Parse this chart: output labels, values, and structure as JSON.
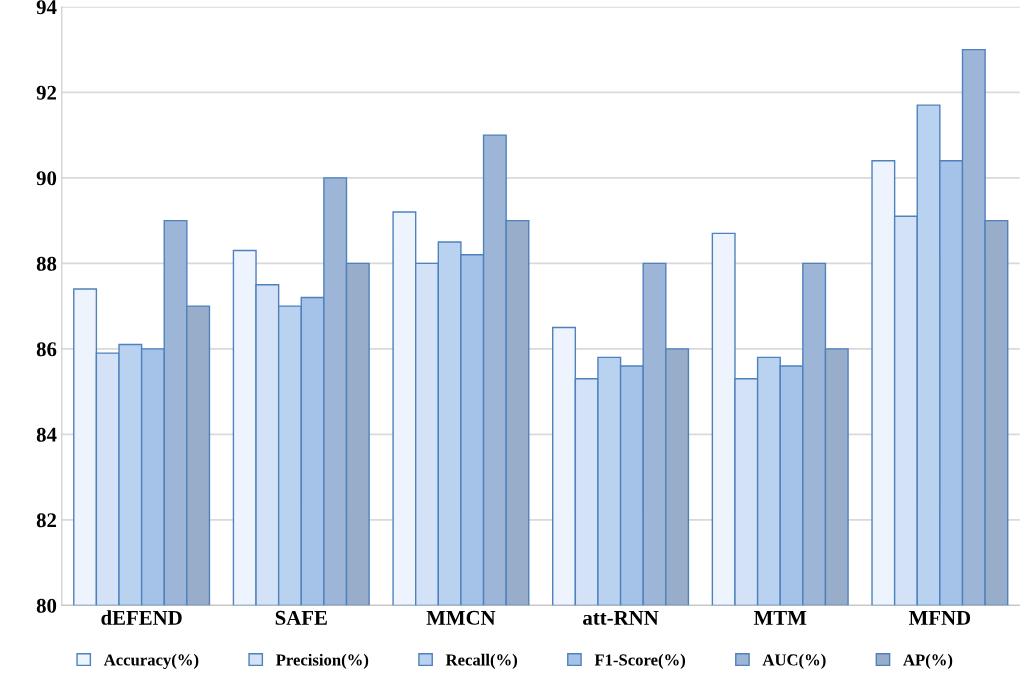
{
  "chart_data": {
    "type": "bar",
    "categories": [
      "dEFEND",
      "SAFE",
      "MMCN",
      "att-RNN",
      "MTM",
      "MFND"
    ],
    "series": [
      {
        "name": "Accuracy(%)",
        "color": "#eef4fd",
        "values": [
          87.4,
          88.3,
          89.2,
          86.5,
          88.7,
          90.4
        ]
      },
      {
        "name": "Precision(%)",
        "color": "#d3e2f6",
        "values": [
          85.9,
          87.5,
          88.0,
          85.3,
          85.3,
          89.1
        ]
      },
      {
        "name": "Recall(%)",
        "color": "#b9d2f0",
        "values": [
          86.1,
          87.0,
          88.5,
          85.8,
          85.8,
          91.7
        ]
      },
      {
        "name": "F1-Score(%)",
        "color": "#a5c3e8",
        "values": [
          86.0,
          87.2,
          88.2,
          85.6,
          85.6,
          90.4
        ]
      },
      {
        "name": "AUC(%)",
        "color": "#9db5d6",
        "values": [
          89.0,
          90.0,
          91.0,
          88.0,
          88.0,
          93.0
        ]
      },
      {
        "name": "AP(%)",
        "color": "#98adc9",
        "values": [
          87.0,
          88.0,
          89.0,
          86.0,
          86.0,
          89.0
        ]
      }
    ],
    "ylim": [
      80,
      94
    ],
    "yticks": [
      80,
      82,
      84,
      86,
      88,
      90,
      92,
      94
    ],
    "grid": "y",
    "legend": "bottom"
  }
}
